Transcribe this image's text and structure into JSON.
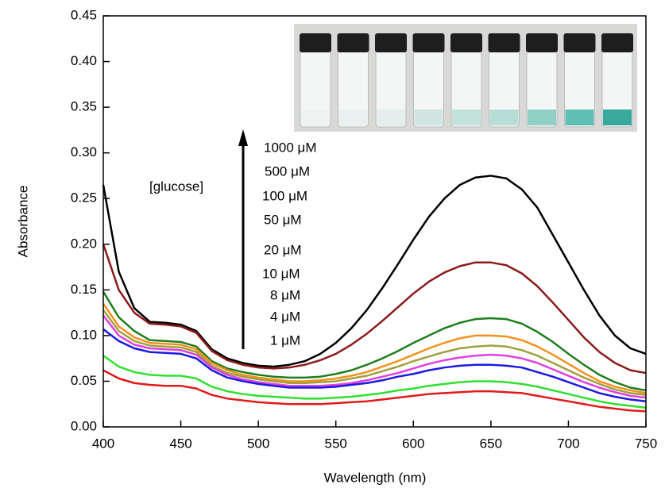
{
  "chart_data": {
    "type": "line",
    "x_label": "Wavelength (nm)",
    "y_label": "Absorbance",
    "annotation": "[glucose]",
    "xlim": [
      400,
      750
    ],
    "ylim": [
      0,
      0.45
    ],
    "xticks": [
      400,
      450,
      500,
      550,
      600,
      650,
      700,
      750
    ],
    "yticks": [
      {
        "value": 0,
        "label": "0.00"
      },
      {
        "value": 0.05,
        "label": "0.05"
      },
      {
        "value": 0.1,
        "label": "0.10"
      },
      {
        "value": 0.15,
        "label": "0.15"
      },
      {
        "value": 0.2,
        "label": "0.20"
      },
      {
        "value": 0.25,
        "label": "0.25"
      },
      {
        "value": 0.3,
        "label": "0.30"
      },
      {
        "value": 0.35,
        "label": "0.35"
      },
      {
        "value": 0.4,
        "label": "0.40"
      },
      {
        "value": 0.45,
        "label": "0.45"
      }
    ],
    "x": [
      400,
      410,
      420,
      430,
      440,
      450,
      460,
      470,
      480,
      490,
      500,
      510,
      520,
      530,
      540,
      550,
      560,
      570,
      580,
      590,
      600,
      610,
      620,
      630,
      640,
      650,
      660,
      670,
      680,
      690,
      700,
      710,
      720,
      730,
      740,
      750
    ],
    "series": [
      {
        "name": "1000 μM",
        "color": "#000000",
        "values": [
          0.265,
          0.17,
          0.13,
          0.115,
          0.114,
          0.112,
          0.105,
          0.085,
          0.075,
          0.07,
          0.067,
          0.066,
          0.068,
          0.072,
          0.08,
          0.092,
          0.108,
          0.128,
          0.152,
          0.178,
          0.205,
          0.23,
          0.25,
          0.265,
          0.273,
          0.275,
          0.272,
          0.26,
          0.24,
          0.21,
          0.18,
          0.15,
          0.122,
          0.1,
          0.086,
          0.08
        ]
      },
      {
        "name": "500 μM",
        "color": "#8b1a1a",
        "values": [
          0.2,
          0.15,
          0.125,
          0.113,
          0.112,
          0.11,
          0.103,
          0.083,
          0.073,
          0.068,
          0.065,
          0.064,
          0.065,
          0.068,
          0.073,
          0.08,
          0.09,
          0.102,
          0.116,
          0.131,
          0.146,
          0.159,
          0.169,
          0.176,
          0.18,
          0.18,
          0.177,
          0.168,
          0.154,
          0.136,
          0.117,
          0.098,
          0.082,
          0.07,
          0.062,
          0.059
        ]
      },
      {
        "name": "100 μM",
        "color": "#1e7d1e",
        "values": [
          0.148,
          0.12,
          0.105,
          0.095,
          0.094,
          0.093,
          0.088,
          0.072,
          0.064,
          0.06,
          0.057,
          0.055,
          0.054,
          0.054,
          0.055,
          0.058,
          0.062,
          0.068,
          0.075,
          0.083,
          0.092,
          0.1,
          0.108,
          0.114,
          0.118,
          0.119,
          0.118,
          0.113,
          0.104,
          0.093,
          0.08,
          0.068,
          0.057,
          0.049,
          0.043,
          0.04
        ]
      },
      {
        "name": "50 μM",
        "color": "#f5901e",
        "values": [
          0.135,
          0.11,
          0.098,
          0.092,
          0.091,
          0.09,
          0.085,
          0.07,
          0.062,
          0.057,
          0.054,
          0.052,
          0.05,
          0.05,
          0.051,
          0.053,
          0.056,
          0.06,
          0.066,
          0.072,
          0.079,
          0.086,
          0.092,
          0.097,
          0.1,
          0.1,
          0.099,
          0.095,
          0.088,
          0.079,
          0.069,
          0.059,
          0.05,
          0.044,
          0.04,
          0.037
        ]
      },
      {
        "name": "20 μM",
        "color": "#a0a040",
        "values": [
          0.128,
          0.105,
          0.094,
          0.089,
          0.088,
          0.087,
          0.082,
          0.067,
          0.059,
          0.055,
          0.052,
          0.05,
          0.048,
          0.048,
          0.049,
          0.05,
          0.053,
          0.056,
          0.061,
          0.066,
          0.072,
          0.077,
          0.082,
          0.086,
          0.088,
          0.089,
          0.088,
          0.084,
          0.078,
          0.07,
          0.062,
          0.054,
          0.047,
          0.041,
          0.037,
          0.035
        ]
      },
      {
        "name": "10 μM",
        "color": "#e040e0",
        "values": [
          0.122,
          0.1,
          0.09,
          0.086,
          0.085,
          0.084,
          0.079,
          0.065,
          0.057,
          0.052,
          0.049,
          0.047,
          0.045,
          0.045,
          0.045,
          0.046,
          0.048,
          0.051,
          0.055,
          0.059,
          0.064,
          0.069,
          0.073,
          0.076,
          0.078,
          0.079,
          0.078,
          0.075,
          0.07,
          0.063,
          0.056,
          0.049,
          0.043,
          0.038,
          0.034,
          0.032
        ]
      },
      {
        "name": "8 μM",
        "color": "#1a1ae0",
        "values": [
          0.107,
          0.094,
          0.086,
          0.082,
          0.081,
          0.08,
          0.075,
          0.062,
          0.054,
          0.05,
          0.047,
          0.045,
          0.043,
          0.043,
          0.043,
          0.044,
          0.046,
          0.048,
          0.051,
          0.055,
          0.058,
          0.062,
          0.065,
          0.067,
          0.068,
          0.068,
          0.067,
          0.065,
          0.06,
          0.055,
          0.049,
          0.043,
          0.037,
          0.033,
          0.03,
          0.028
        ]
      },
      {
        "name": "4 μM",
        "color": "#30e030",
        "values": [
          0.078,
          0.066,
          0.06,
          0.057,
          0.056,
          0.056,
          0.053,
          0.044,
          0.039,
          0.036,
          0.034,
          0.033,
          0.032,
          0.031,
          0.031,
          0.032,
          0.033,
          0.035,
          0.037,
          0.04,
          0.042,
          0.045,
          0.047,
          0.049,
          0.05,
          0.05,
          0.049,
          0.047,
          0.044,
          0.04,
          0.036,
          0.032,
          0.028,
          0.025,
          0.023,
          0.021
        ]
      },
      {
        "name": "1 μM",
        "color": "#e01a1a",
        "values": [
          0.062,
          0.053,
          0.048,
          0.046,
          0.045,
          0.045,
          0.042,
          0.035,
          0.031,
          0.029,
          0.027,
          0.026,
          0.025,
          0.025,
          0.025,
          0.026,
          0.027,
          0.028,
          0.03,
          0.032,
          0.034,
          0.036,
          0.037,
          0.038,
          0.039,
          0.039,
          0.038,
          0.037,
          0.034,
          0.031,
          0.028,
          0.025,
          0.022,
          0.02,
          0.018,
          0.017
        ]
      }
    ]
  }
}
